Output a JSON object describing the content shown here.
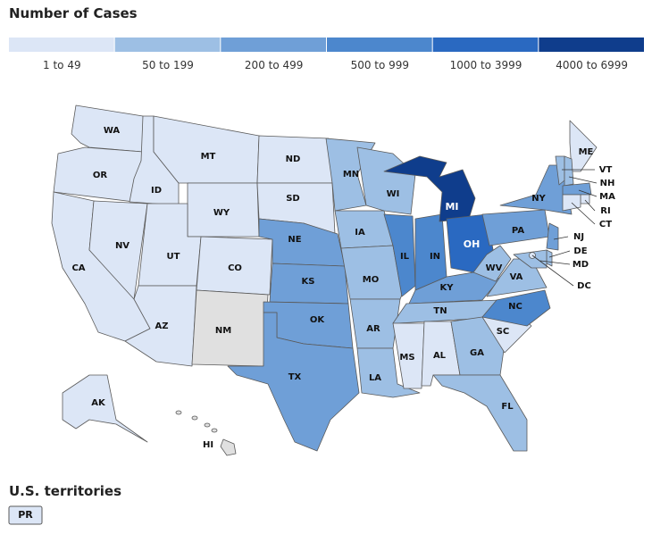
{
  "title": "Number of Cases",
  "legend": [
    {
      "label": "1 to 49",
      "color": "#dce6f6"
    },
    {
      "label": "50 to 199",
      "color": "#9dbfe4"
    },
    {
      "label": "200 to 499",
      "color": "#6f9fd7"
    },
    {
      "label": "500 to 999",
      "color": "#4c87cd"
    },
    {
      "label": "1000 to 3999",
      "color": "#2a69c1"
    },
    {
      "label": "4000 to 6999",
      "color": "#0f3d8c"
    }
  ],
  "no_data_color": "#e0e0e0",
  "states": [
    {
      "label": "WA",
      "bin": 0
    },
    {
      "label": "OR",
      "bin": 0
    },
    {
      "label": "CA",
      "bin": 0
    },
    {
      "label": "ID",
      "bin": 0
    },
    {
      "label": "NV",
      "bin": 0
    },
    {
      "label": "MT",
      "bin": 0
    },
    {
      "label": "WY",
      "bin": 0
    },
    {
      "label": "UT",
      "bin": 0
    },
    {
      "label": "AZ",
      "bin": 0
    },
    {
      "label": "CO",
      "bin": 0
    },
    {
      "label": "NM",
      "bin": null
    },
    {
      "label": "ND",
      "bin": 0
    },
    {
      "label": "SD",
      "bin": 0
    },
    {
      "label": "NE",
      "bin": 2
    },
    {
      "label": "KS",
      "bin": 2
    },
    {
      "label": "OK",
      "bin": 2
    },
    {
      "label": "TX",
      "bin": 2
    },
    {
      "label": "MN",
      "bin": 1
    },
    {
      "label": "IA",
      "bin": 1
    },
    {
      "label": "MO",
      "bin": 1
    },
    {
      "label": "AR",
      "bin": 1
    },
    {
      "label": "LA",
      "bin": 1
    },
    {
      "label": "WI",
      "bin": 1
    },
    {
      "label": "IL",
      "bin": 3
    },
    {
      "label": "IN",
      "bin": 3
    },
    {
      "label": "MI",
      "bin": 5
    },
    {
      "label": "OH",
      "bin": 4
    },
    {
      "label": "KY",
      "bin": 2
    },
    {
      "label": "TN",
      "bin": 1
    },
    {
      "label": "MS",
      "bin": 0
    },
    {
      "label": "AL",
      "bin": 0
    },
    {
      "label": "GA",
      "bin": 1
    },
    {
      "label": "FL",
      "bin": 1
    },
    {
      "label": "SC",
      "bin": 0
    },
    {
      "label": "NC",
      "bin": 3
    },
    {
      "label": "VA",
      "bin": 1
    },
    {
      "label": "WV",
      "bin": 1
    },
    {
      "label": "PA",
      "bin": 2
    },
    {
      "label": "NY",
      "bin": 2
    },
    {
      "label": "ME",
      "bin": 0
    },
    {
      "label": "VT",
      "bin": 1
    },
    {
      "label": "NH",
      "bin": 1
    },
    {
      "label": "MA",
      "bin": 2
    },
    {
      "label": "RI",
      "bin": 0
    },
    {
      "label": "CT",
      "bin": 0
    },
    {
      "label": "NJ",
      "bin": 2
    },
    {
      "label": "DE",
      "bin": 1
    },
    {
      "label": "MD",
      "bin": 1
    },
    {
      "label": "DC",
      "bin": 0
    },
    {
      "label": "AK",
      "bin": 0
    },
    {
      "label": "HI",
      "bin": null
    }
  ],
  "territories_title": "U.S. territories",
  "territories": [
    {
      "label": "PR",
      "bin": 0
    }
  ]
}
